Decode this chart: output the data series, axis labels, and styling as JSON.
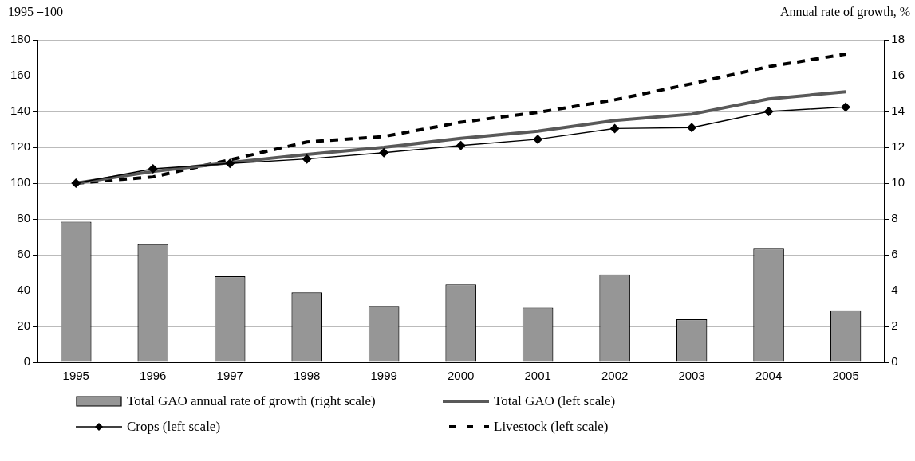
{
  "chart_data": {
    "type": "line",
    "ylabel": "1995 =100",
    "y2label": "Annual rate of growth, %",
    "categories": [
      "1995",
      "1996",
      "1997",
      "1998",
      "1999",
      "2000",
      "2001",
      "2002",
      "2003",
      "2004",
      "2005"
    ],
    "series": [
      {
        "name": "Total GAO annual rate of growth (right scale)",
        "type": "bar",
        "axis": "y2",
        "color": "#969696",
        "values": [
          7.85,
          6.6,
          4.8,
          3.9,
          3.15,
          4.35,
          3.05,
          4.9,
          2.4,
          6.35,
          2.9
        ]
      },
      {
        "name": "Total GAO (left scale)",
        "color": "#595959",
        "marker": "none",
        "line_style": "solid",
        "values": [
          100,
          106.5,
          111.5,
          116,
          120,
          125,
          129,
          135,
          138.5,
          147,
          151
        ]
      },
      {
        "name": "Crops (left scale)",
        "color": "#000000",
        "marker": "diamond",
        "line_style": "solid",
        "values": [
          100,
          108,
          111,
          113.5,
          117,
          121,
          124.5,
          130.5,
          131,
          140,
          142.5
        ]
      },
      {
        "name": "Livestock (left scale)",
        "color": "#000000",
        "marker": "none",
        "line_style": "dashed",
        "values": [
          100,
          103.5,
          113,
          123,
          126,
          134,
          139.5,
          146.5,
          155.5,
          165,
          172
        ]
      }
    ],
    "ylim": [
      0,
      180
    ],
    "yticks": [
      0,
      20,
      40,
      60,
      80,
      100,
      120,
      140,
      160,
      180
    ],
    "y2lim": [
      0,
      18
    ],
    "y2ticks": [
      0,
      2,
      4,
      6,
      8,
      10,
      12,
      14,
      16,
      18
    ],
    "grid": "y",
    "legend": "bottom"
  }
}
